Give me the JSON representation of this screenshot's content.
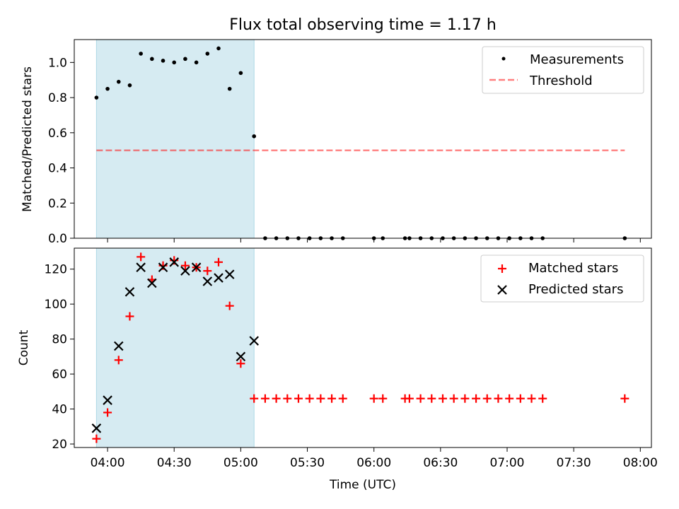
{
  "figure_title": "Flux total observing time = 1.17 h",
  "colors": {
    "shade": "#add8e6",
    "threshold": "#ff0000",
    "matched": "#ff0000",
    "predicted": "#000000",
    "measure": "#000000"
  },
  "chart_data": [
    {
      "type": "scatter",
      "panel": "top",
      "ylabel": "Matched/Predicted stars",
      "xlabel": "",
      "xlim": [
        "03:45",
        "08:05"
      ],
      "ylim": [
        0,
        1.13
      ],
      "yticks": [
        "0.0",
        "0.2",
        "0.4",
        "0.6",
        "0.8",
        "1.0"
      ],
      "shaded_interval": [
        "03:55",
        "05:06"
      ],
      "legend_position": "top-right",
      "series": [
        {
          "name": "Measurements",
          "marker": "dot",
          "x": [
            "03:55",
            "04:00",
            "04:05",
            "04:10",
            "04:15",
            "04:20",
            "04:25",
            "04:30",
            "04:35",
            "04:40",
            "04:45",
            "04:50",
            "04:55",
            "05:00",
            "05:06",
            "05:11",
            "05:16",
            "05:21",
            "05:26",
            "05:31",
            "05:36",
            "05:41",
            "05:46",
            "06:00",
            "06:04",
            "06:14",
            "06:16",
            "06:21",
            "06:26",
            "06:31",
            "06:36",
            "06:41",
            "06:46",
            "06:51",
            "06:56",
            "07:01",
            "07:06",
            "07:11",
            "07:16",
            "07:53"
          ],
          "y": [
            0.8,
            0.85,
            0.89,
            0.87,
            1.05,
            1.02,
            1.01,
            1.0,
            1.02,
            1.0,
            1.05,
            1.08,
            0.85,
            0.94,
            0.58,
            0,
            0,
            0,
            0,
            0,
            0,
            0,
            0,
            0,
            0,
            0,
            0,
            0,
            0,
            0,
            0,
            0,
            0,
            0,
            0,
            0,
            0,
            0,
            0,
            0
          ]
        },
        {
          "name": "Threshold",
          "marker": "dashed-line",
          "x": [
            "03:55",
            "07:53"
          ],
          "y": [
            0.5,
            0.5
          ]
        }
      ]
    },
    {
      "type": "scatter",
      "panel": "bottom",
      "ylabel": "Count",
      "xlabel": "Time (UTC)",
      "xlim": [
        "03:45",
        "08:05"
      ],
      "ylim": [
        18,
        132
      ],
      "yticks": [
        "20",
        "40",
        "60",
        "80",
        "100",
        "120"
      ],
      "xticks": [
        "04:00",
        "04:30",
        "05:00",
        "05:30",
        "06:00",
        "06:30",
        "07:00",
        "07:30",
        "08:00"
      ],
      "shaded_interval": [
        "03:55",
        "05:06"
      ],
      "legend_position": "top-right",
      "series": [
        {
          "name": "Matched stars",
          "marker": "plus",
          "x": [
            "03:55",
            "04:00",
            "04:05",
            "04:10",
            "04:15",
            "04:20",
            "04:25",
            "04:30",
            "04:35",
            "04:40",
            "04:45",
            "04:50",
            "04:55",
            "05:00",
            "05:06",
            "05:11",
            "05:16",
            "05:21",
            "05:26",
            "05:31",
            "05:36",
            "05:41",
            "05:46",
            "06:00",
            "06:04",
            "06:14",
            "06:16",
            "06:21",
            "06:26",
            "06:31",
            "06:36",
            "06:41",
            "06:46",
            "06:51",
            "06:56",
            "07:01",
            "07:06",
            "07:11",
            "07:16",
            "07:53"
          ],
          "y": [
            23,
            38,
            68,
            93,
            127,
            114,
            122,
            125,
            122,
            121,
            119,
            124,
            99,
            66,
            46,
            46,
            46,
            46,
            46,
            46,
            46,
            46,
            46,
            46,
            46,
            46,
            46,
            46,
            46,
            46,
            46,
            46,
            46,
            46,
            46,
            46,
            46,
            46,
            46,
            46
          ]
        },
        {
          "name": "Predicted stars",
          "marker": "x",
          "x": [
            "03:55",
            "04:00",
            "04:05",
            "04:10",
            "04:15",
            "04:20",
            "04:25",
            "04:30",
            "04:35",
            "04:40",
            "04:45",
            "04:50",
            "04:55",
            "05:00",
            "05:06"
          ],
          "y": [
            29,
            45,
            76,
            107,
            121,
            112,
            121,
            124,
            119,
            121,
            113,
            115,
            117,
            70,
            79
          ]
        }
      ]
    }
  ]
}
